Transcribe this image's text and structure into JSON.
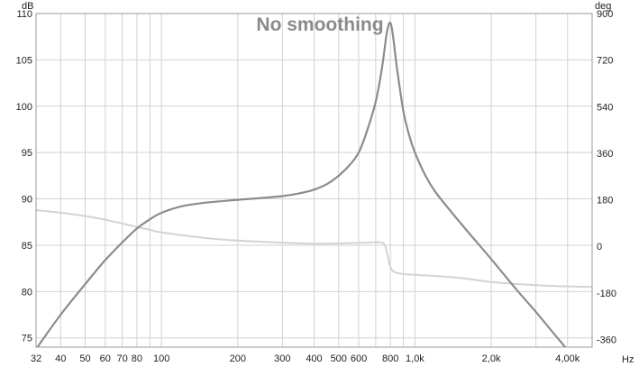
{
  "chart_data": {
    "type": "line",
    "title": "No smoothing",
    "x_scale": "log",
    "x_unit": "Hz",
    "y_left_unit": "dB",
    "y_right_unit": "deg",
    "xlim": [
      32,
      5000
    ],
    "ylim_left": [
      74,
      110
    ],
    "ylim_right": [
      -390,
      900
    ],
    "grid": true,
    "x_ticks": [
      {
        "value": 32,
        "label": "32"
      },
      {
        "value": 40,
        "label": "40"
      },
      {
        "value": 50,
        "label": "50"
      },
      {
        "value": 60,
        "label": "60"
      },
      {
        "value": 70,
        "label": "70"
      },
      {
        "value": 80,
        "label": "80"
      },
      {
        "value": 100,
        "label": "100"
      },
      {
        "value": 200,
        "label": "200"
      },
      {
        "value": 300,
        "label": "300"
      },
      {
        "value": 400,
        "label": "400"
      },
      {
        "value": 500,
        "label": "500"
      },
      {
        "value": 600,
        "label": "600"
      },
      {
        "value": 800,
        "label": "800"
      },
      {
        "value": 1000,
        "label": "1,0k"
      },
      {
        "value": 2000,
        "label": "2,0k"
      },
      {
        "value": 4000,
        "label": "4,00k"
      }
    ],
    "x_minor_gridlines": [
      90,
      700,
      900,
      3000,
      5000
    ],
    "y_left_ticks": [
      {
        "value": 75,
        "label": "75"
      },
      {
        "value": 80,
        "label": "80"
      },
      {
        "value": 85,
        "label": "85"
      },
      {
        "value": 90,
        "label": "90"
      },
      {
        "value": 95,
        "label": "95"
      },
      {
        "value": 100,
        "label": "100"
      },
      {
        "value": 105,
        "label": "105"
      },
      {
        "value": 110,
        "label": "110"
      }
    ],
    "y_right_ticks": [
      {
        "value": -360,
        "label": "-360"
      },
      {
        "value": -180,
        "label": "-180"
      },
      {
        "value": 0,
        "label": "0"
      },
      {
        "value": 180,
        "label": "180"
      },
      {
        "value": 360,
        "label": "360"
      },
      {
        "value": 540,
        "label": "540"
      },
      {
        "value": 720,
        "label": "720"
      },
      {
        "value": 900,
        "label": "900"
      }
    ],
    "series": [
      {
        "axis": "left",
        "color": "#8c8c8c",
        "points": [
          [
            32,
            73.8
          ],
          [
            40,
            77.5
          ],
          [
            50,
            80.8
          ],
          [
            60,
            83.4
          ],
          [
            70,
            85.3
          ],
          [
            80,
            86.8
          ],
          [
            90,
            87.8
          ],
          [
            100,
            88.5
          ],
          [
            120,
            89.2
          ],
          [
            150,
            89.6
          ],
          [
            200,
            89.9
          ],
          [
            250,
            90.1
          ],
          [
            300,
            90.3
          ],
          [
            350,
            90.6
          ],
          [
            400,
            91.0
          ],
          [
            450,
            91.6
          ],
          [
            500,
            92.5
          ],
          [
            550,
            93.6
          ],
          [
            600,
            95.0
          ],
          [
            650,
            97.5
          ],
          [
            700,
            100.5
          ],
          [
            740,
            104.0
          ],
          [
            770,
            107.5
          ],
          [
            785,
            108.7
          ],
          [
            795,
            109.0
          ],
          [
            805,
            108.8
          ],
          [
            820,
            107.5
          ],
          [
            850,
            104.0
          ],
          [
            900,
            99.5
          ],
          [
            950,
            96.8
          ],
          [
            1000,
            95.0
          ],
          [
            1100,
            92.5
          ],
          [
            1200,
            90.8
          ],
          [
            1400,
            88.5
          ],
          [
            1600,
            86.6
          ],
          [
            2000,
            83.5
          ],
          [
            2500,
            80.3
          ],
          [
            3000,
            77.8
          ],
          [
            3500,
            75.6
          ],
          [
            4000,
            73.7
          ]
        ]
      },
      {
        "axis": "right",
        "color": "#d3d3d3",
        "points": [
          [
            32,
            140
          ],
          [
            40,
            130
          ],
          [
            50,
            117
          ],
          [
            60,
            103
          ],
          [
            70,
            88
          ],
          [
            80,
            75
          ],
          [
            90,
            64
          ],
          [
            100,
            54
          ],
          [
            150,
            32
          ],
          [
            200,
            22
          ],
          [
            300,
            14
          ],
          [
            400,
            10
          ],
          [
            500,
            11
          ],
          [
            600,
            13
          ],
          [
            700,
            16
          ],
          [
            740,
            14
          ],
          [
            760,
            5
          ],
          [
            780,
            -35
          ],
          [
            800,
            -80
          ],
          [
            830,
            -100
          ],
          [
            900,
            -107
          ],
          [
            1000,
            -110
          ],
          [
            1500,
            -122
          ],
          [
            2000,
            -138
          ],
          [
            3000,
            -150
          ],
          [
            4000,
            -155
          ],
          [
            5000,
            -157
          ]
        ]
      }
    ]
  }
}
